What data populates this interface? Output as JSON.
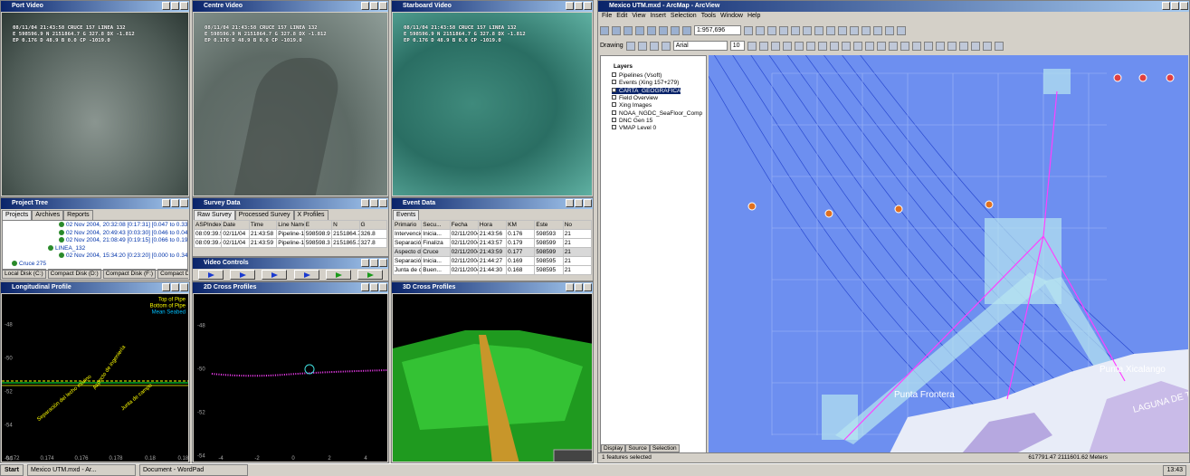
{
  "windows": {
    "port_video": {
      "title": "Port Video",
      "overlay": [
        "08/11/04 21:43:58 CRUCE 157 LINEA 132",
        "E 598596.9 N 2151864.7 G 327.8 DX -1.812",
        "EP 0.176 D 48.9 B 0.0 CP -1019.0"
      ]
    },
    "centre_video": {
      "title": "Centre Video",
      "overlay": [
        "08/11/04 21:43:58 CRUCE 157 LINEA 132",
        "E 598596.9 N 2151864.7 G 327.8 DX -1.812",
        "EP 0.176 D 48.9 B 0.0 CP -1019.0"
      ]
    },
    "starboard_video": {
      "title": "Starboard Video",
      "overlay": [
        "08/11/04 21:43:58 CRUCE 157 LINEA 132",
        "E 598596.9 N 2151864.7 G 327.8 DX -1.812",
        "EP 0.176 D 48.9 B 0.0 CP -1019.0"
      ]
    },
    "project_tree": {
      "title": "Project Tree",
      "tabs": [
        "Projects",
        "Archives",
        "Reports"
      ],
      "items": [
        "02 Nov 2004, 20:32:08 [0:17:31] [0.047 to 0.33",
        "02 Nov 2004, 20:49:43 [0:03:30] [0.046 to 0.04",
        "02 Nov 2004, 21:08:49 [0:19:15] [0.066 to 0.19",
        "LINEA_132",
        "02 Nov 2004, 15:34:20 [0:23:20] [0.000 to 0.34",
        "Cruce 275"
      ],
      "drives": [
        "Local Disk (C:)",
        "Compact Disk (D:)",
        "Compact Disk (F:)",
        "Compact Disk (G:)"
      ]
    },
    "survey_data": {
      "title": "Survey Data",
      "tabs": [
        "Raw Survey",
        "Processed Survey",
        "X Profiles"
      ],
      "columns": [
        "ASPIndex",
        "Date",
        "Time",
        "Line Name",
        "E",
        "N",
        "G"
      ],
      "rows": [
        [
          "08:09:39.5",
          "02/11/04",
          "21:43:58",
          "Pipeline-132",
          "598598.9",
          "2151864.7",
          "326.8"
        ],
        [
          "08:09:39.4",
          "02/11/04",
          "21:43:59",
          "Pipeline-132",
          "598598.3",
          "2151865.3",
          "327.8"
        ]
      ]
    },
    "video_controls": {
      "title": "Video Controls"
    },
    "event_data": {
      "title": "Event Data",
      "tabs": [
        "Events"
      ],
      "columns": [
        "Primario",
        "Secu...",
        "Fecha",
        "Hora",
        "KM",
        "Este",
        "No"
      ],
      "rows": [
        [
          "Intervención",
          "Inicia...",
          "02/11/2004",
          "21:43:56",
          "0.176",
          "598593",
          "21"
        ],
        [
          "Separación del lecho...",
          "Finaliza",
          "02/11/2004",
          "21:43:57",
          "0.179",
          "598599",
          "21"
        ],
        [
          "Aspecto de ingeniería",
          "Cruce",
          "02/11/2004",
          "21:43:59",
          "0.177",
          "598599",
          "21"
        ],
        [
          "Separación del lecho...",
          "Inicia...",
          "02/11/2004",
          "21:44:27",
          "0.169",
          "598595",
          "21"
        ],
        [
          "Junta de campo",
          "Buen...",
          "02/11/2004",
          "21:44:30",
          "0.168",
          "598595",
          "21"
        ]
      ]
    },
    "longitudinal": {
      "title": "Longitudinal Profile",
      "legend": [
        "Top of Pipe",
        "Bottom of Pipe",
        "Mean Seabed"
      ],
      "yticks": [
        "-48",
        "-50",
        "-52",
        "-54",
        "-56"
      ],
      "xticks": [
        "0.172",
        "0.174",
        "0.176",
        "0.178",
        "0.18",
        "0.182"
      ],
      "annotations": [
        "Aspecto de ingeniería",
        "Separación del lecho marino",
        "Junta de campo"
      ]
    },
    "cross2d": {
      "title": "2D Cross Profiles",
      "yticks": [
        "-48",
        "-50",
        "-52",
        "-54"
      ],
      "xticks": [
        "-4",
        "-2",
        "0",
        "2",
        "4"
      ]
    },
    "cross3d": {
      "title": "3D Cross Profiles"
    }
  },
  "arcmap": {
    "title": "Mexico UTM.mxd - ArcMap - ArcView",
    "menu": [
      "File",
      "Edit",
      "View",
      "Insert",
      "Selection",
      "Tools",
      "Window",
      "Help"
    ],
    "scale": "1:957,696",
    "drawing": "Drawing",
    "font": "Arial",
    "font_size": "10",
    "toc_root": "Layers",
    "layers": [
      "Pipelines (Vsoft)",
      "Events (Xing 157+279)",
      "CARTA_GEOGRAFICA",
      "Field Overview",
      "Xing Images",
      "NOAA_NGDC_SeaFloor_Comp",
      "DNC Gen 15",
      "VMAP Level 0"
    ],
    "toc_tabs": [
      "Display",
      "Source",
      "Selection"
    ],
    "map_labels": [
      "Punta Xicalango",
      "Punta Frontera",
      "LAGUNA DE TERMINOS"
    ],
    "status": [
      "1 features selected",
      "617791.47  2111601.62 Meters"
    ]
  },
  "taskbar": {
    "start": "Start",
    "tasks": [
      "Mexico UTM.mxd - Ar...",
      "Document - WordPad"
    ],
    "clock": "13:43"
  }
}
